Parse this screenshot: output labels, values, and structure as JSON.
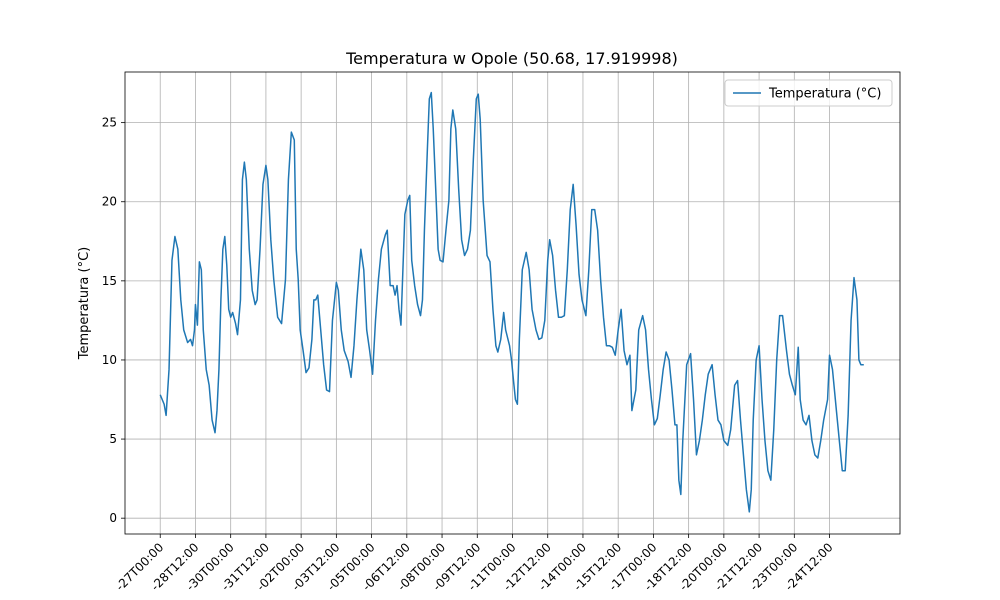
{
  "chart_data": {
    "type": "line",
    "title": "Temperatura w Opole (50.68, 17.919998)",
    "y_label": "Temperatura (°C)",
    "x": [
      0,
      4,
      6,
      9,
      12,
      15,
      18,
      21,
      24,
      28,
      31,
      33,
      35,
      36,
      38,
      40,
      42,
      44,
      47,
      50,
      53,
      56,
      58,
      60,
      62,
      64,
      66,
      68,
      70,
      72,
      74,
      77,
      79,
      82,
      84,
      86,
      88,
      91,
      94,
      97,
      99,
      102,
      105,
      108,
      110,
      113,
      116,
      120,
      124,
      128,
      131,
      134,
      137,
      139,
      141,
      143,
      146,
      149,
      152,
      155,
      157,
      159,
      161,
      164,
      167,
      170,
      173,
      176,
      180,
      182,
      185,
      188,
      192,
      195,
      198,
      201,
      205,
      208,
      211,
      214,
      217,
      220,
      223,
      226,
      230,
      232,
      235,
      238,
      240,
      242,
      244,
      246,
      248,
      250,
      253,
      255,
      257,
      260,
      263,
      266,
      268,
      270,
      273,
      275,
      277,
      279,
      282,
      284,
      286,
      289,
      292,
      295,
      297,
      299,
      302,
      305,
      308,
      311,
      314,
      317,
      320,
      323,
      325,
      327,
      330,
      334,
      337,
      340,
      343,
      345,
      348,
      351,
      353,
      357,
      359,
      361,
      363,
      365,
      367,
      370,
      374,
      377,
      380,
      384,
      387,
      390,
      393,
      396,
      398,
      401,
      404,
      407,
      410,
      413,
      416,
      419,
      422,
      425,
      428,
      431,
      435,
      438,
      441,
      444,
      447,
      450,
      453,
      456,
      459,
      462,
      465,
      468,
      471,
      474,
      477,
      480,
      482,
      486,
      489,
      493,
      496,
      499,
      502,
      505,
      508,
      511,
      514,
      517,
      520,
      523,
      526,
      528,
      530,
      532,
      534,
      538,
      542,
      545,
      548,
      551,
      554,
      557,
      560,
      564,
      567,
      570,
      573,
      576,
      580,
      583,
      587,
      590,
      593,
      596,
      599,
      602,
      604,
      606,
      609,
      612,
      615,
      618,
      621,
      624,
      627,
      630,
      633,
      636,
      640,
      643,
      646,
      649,
      652,
      654,
      657,
      660,
      663,
      666,
      669,
      672,
      675,
      678,
      682,
      684,
      687,
      691,
      694,
      697,
      700,
      703,
      706,
      709,
      712,
      714,
      716,
      719
    ],
    "series": [
      {
        "name": "Temperatura (°C)",
        "color": "#1f77b4",
        "values": [
          7.8,
          7.2,
          6.5,
          9.4,
          16.3,
          17.8,
          17.0,
          13.8,
          11.9,
          11.1,
          11.3,
          10.9,
          11.9,
          13.5,
          12.2,
          16.2,
          15.7,
          11.9,
          9.4,
          8.4,
          6.2,
          5.4,
          6.8,
          9.4,
          13.8,
          17.0,
          17.8,
          16.0,
          13.2,
          12.7,
          13.0,
          12.3,
          11.6,
          13.8,
          21.4,
          22.5,
          21.4,
          17.0,
          14.4,
          13.5,
          13.8,
          17.0,
          21.1,
          22.3,
          21.4,
          17.6,
          15.1,
          12.7,
          12.3,
          15.1,
          21.4,
          24.4,
          23.9,
          17.0,
          15.1,
          11.9,
          10.6,
          9.2,
          9.5,
          11.3,
          13.8,
          13.8,
          14.1,
          11.9,
          9.7,
          8.1,
          8.0,
          12.5,
          14.9,
          14.4,
          11.9,
          10.6,
          9.9,
          8.9,
          10.9,
          13.8,
          17.0,
          15.7,
          11.9,
          10.6,
          9.1,
          12.5,
          15.1,
          17.0,
          17.9,
          18.2,
          14.7,
          14.7,
          14.1,
          14.7,
          13.2,
          12.2,
          15.7,
          19.2,
          20.1,
          20.4,
          16.3,
          14.7,
          13.5,
          12.8,
          13.8,
          18.2,
          23.3,
          26.5,
          26.9,
          24.6,
          20.1,
          17.0,
          16.3,
          16.2,
          18.2,
          20.1,
          24.6,
          25.8,
          24.6,
          20.8,
          17.6,
          16.6,
          17.0,
          18.2,
          22.7,
          26.5,
          26.8,
          25.2,
          20.1,
          16.6,
          16.2,
          13.2,
          10.9,
          10.5,
          11.3,
          13.0,
          11.9,
          10.9,
          10.0,
          8.7,
          7.5,
          7.2,
          11.3,
          15.7,
          16.8,
          15.7,
          13.2,
          11.9,
          11.3,
          11.4,
          12.5,
          16.3,
          17.6,
          16.6,
          14.4,
          12.7,
          12.7,
          12.8,
          15.7,
          19.5,
          21.1,
          18.5,
          15.4,
          13.8,
          12.8,
          15.7,
          19.5,
          19.5,
          18.2,
          15.1,
          12.7,
          10.9,
          10.9,
          10.8,
          10.3,
          11.9,
          13.2,
          10.6,
          9.7,
          10.3,
          6.8,
          8.1,
          11.9,
          12.8,
          11.9,
          9.4,
          7.5,
          5.9,
          6.3,
          7.8,
          9.4,
          10.5,
          10.0,
          8.1,
          5.9,
          5.9,
          2.4,
          1.5,
          4.9,
          9.7,
          10.4,
          7.5,
          4.0,
          4.9,
          6.2,
          7.8,
          9.1,
          9.7,
          7.8,
          6.2,
          5.9,
          4.9,
          4.6,
          5.6,
          8.4,
          8.7,
          6.2,
          4.0,
          1.8,
          0.4,
          1.8,
          6.2,
          10.0,
          10.9,
          7.5,
          4.9,
          3.0,
          2.4,
          5.6,
          10.0,
          12.8,
          12.8,
          10.6,
          9.1,
          8.4,
          7.8,
          10.8,
          7.5,
          6.2,
          5.9,
          6.5,
          4.9,
          4.0,
          3.8,
          4.9,
          6.2,
          7.5,
          10.3,
          9.4,
          6.8,
          4.9,
          3.0,
          3.0,
          6.5,
          12.5,
          15.2,
          13.8,
          10.0,
          9.7,
          9.7
        ]
      }
    ],
    "xlim": [
      -36,
      756
    ],
    "xticks": [
      {
        "value": 0,
        "label": "-27T00:00"
      },
      {
        "value": 36,
        "label": "-28T12:00"
      },
      {
        "value": 72,
        "label": "-30T00:00"
      },
      {
        "value": 108,
        "label": "-31T12:00"
      },
      {
        "value": 144,
        "label": "-02T00:00"
      },
      {
        "value": 180,
        "label": "-03T12:00"
      },
      {
        "value": 216,
        "label": "-05T00:00"
      },
      {
        "value": 252,
        "label": "-06T12:00"
      },
      {
        "value": 288,
        "label": "-08T00:00"
      },
      {
        "value": 324,
        "label": "-09T12:00"
      },
      {
        "value": 360,
        "label": "-11T00:00"
      },
      {
        "value": 396,
        "label": "-12T12:00"
      },
      {
        "value": 432,
        "label": "-14T00:00"
      },
      {
        "value": 468,
        "label": "-15T12:00"
      },
      {
        "value": 504,
        "label": "-17T00:00"
      },
      {
        "value": 540,
        "label": "-18T12:00"
      },
      {
        "value": 576,
        "label": "-20T00:00"
      },
      {
        "value": 612,
        "label": "-21T12:00"
      },
      {
        "value": 648,
        "label": "-23T00:00"
      },
      {
        "value": 684,
        "label": "-24T12:00"
      }
    ],
    "ylim": [
      -1.0,
      28.2
    ],
    "yticks": [
      0,
      5,
      10,
      15,
      20,
      25
    ],
    "grid": true,
    "legend": "upper right"
  }
}
